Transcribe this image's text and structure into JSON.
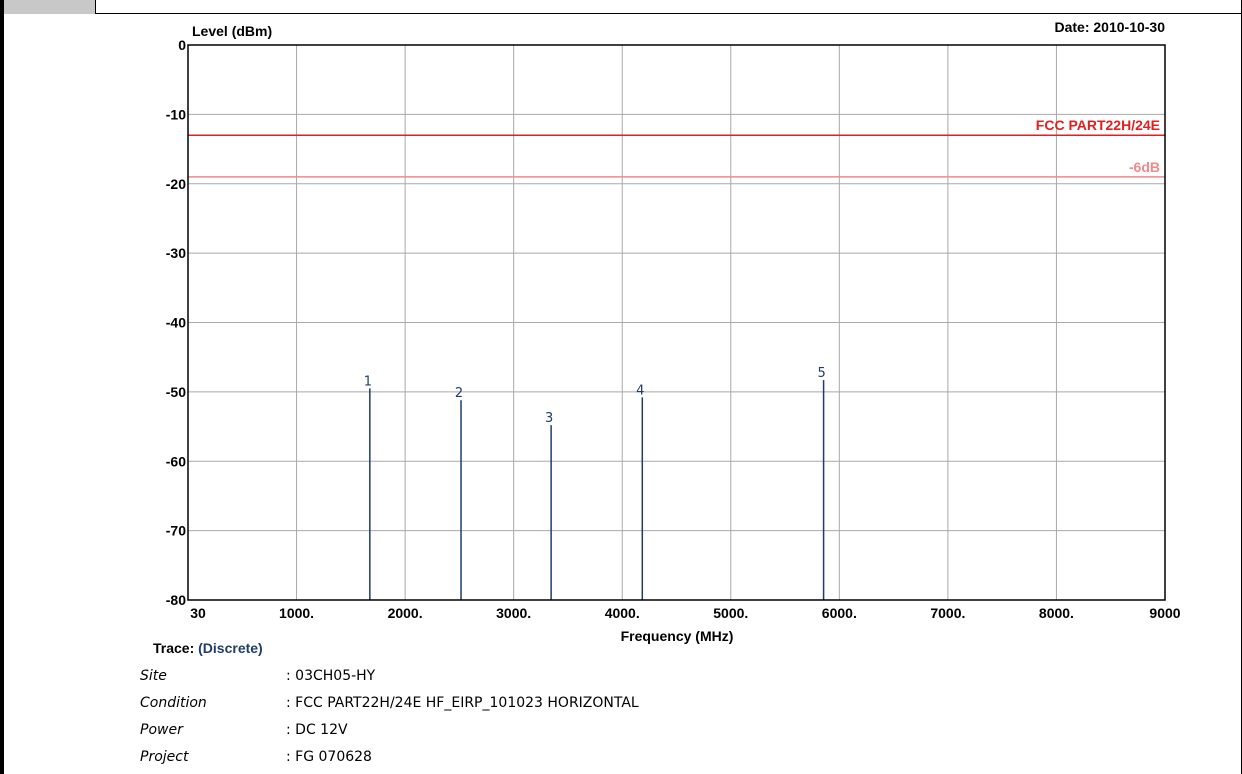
{
  "chart_data": {
    "type": "bar",
    "subtype": "discrete-spectrum",
    "ylabel": "Level (dBm)",
    "xlabel": "Frequency (MHz)",
    "date_label": "Date: 2010-10-30",
    "xlim": [
      30,
      9000
    ],
    "ylim": [
      -80,
      0
    ],
    "x_ticks": [
      {
        "value": 30,
        "label": "30"
      },
      {
        "value": 1000,
        "label": "1000."
      },
      {
        "value": 2000,
        "label": "2000."
      },
      {
        "value": 3000,
        "label": "3000."
      },
      {
        "value": 4000,
        "label": "4000."
      },
      {
        "value": 5000,
        "label": "5000."
      },
      {
        "value": 6000,
        "label": "6000."
      },
      {
        "value": 7000,
        "label": "7000."
      },
      {
        "value": 8000,
        "label": "8000."
      },
      {
        "value": 9000,
        "label": "9000"
      }
    ],
    "y_ticks": [
      {
        "value": 0,
        "label": "0"
      },
      {
        "value": -10,
        "label": "-10"
      },
      {
        "value": -20,
        "label": "-20"
      },
      {
        "value": -30,
        "label": "-30"
      },
      {
        "value": -40,
        "label": "-40"
      },
      {
        "value": -50,
        "label": "-50"
      },
      {
        "value": -60,
        "label": "-60"
      },
      {
        "value": -70,
        "label": "-70"
      },
      {
        "value": -80,
        "label": "-80"
      }
    ],
    "grid": true,
    "limit_lines": [
      {
        "name": "FCC PART22H/24E",
        "value": -13,
        "color": "#e02020"
      },
      {
        "name": "-6dB",
        "value": -19,
        "color": "#f08a8a"
      }
    ],
    "markers": [
      {
        "label": "1",
        "x": 1675,
        "y": -49.5
      },
      {
        "label": "2",
        "x": 2515,
        "y": -51.2
      },
      {
        "label": "3",
        "x": 3345,
        "y": -54.8
      },
      {
        "label": "4",
        "x": 4185,
        "y": -50.8
      },
      {
        "label": "5",
        "x": 5855,
        "y": -48.3
      }
    ],
    "marker_color": "#1f3d6b"
  },
  "trace": {
    "label": "Trace:",
    "value": "(Discrete)"
  },
  "info": [
    {
      "key": "Site",
      "value": ": 03CH05-HY"
    },
    {
      "key": "Condition",
      "value": ": FCC PART22H/24E HF_EIRP_101023 HORIZONTAL"
    },
    {
      "key": "Power",
      "value": ": DC 12V"
    },
    {
      "key": "Project",
      "value": ": FG 070628"
    }
  ]
}
